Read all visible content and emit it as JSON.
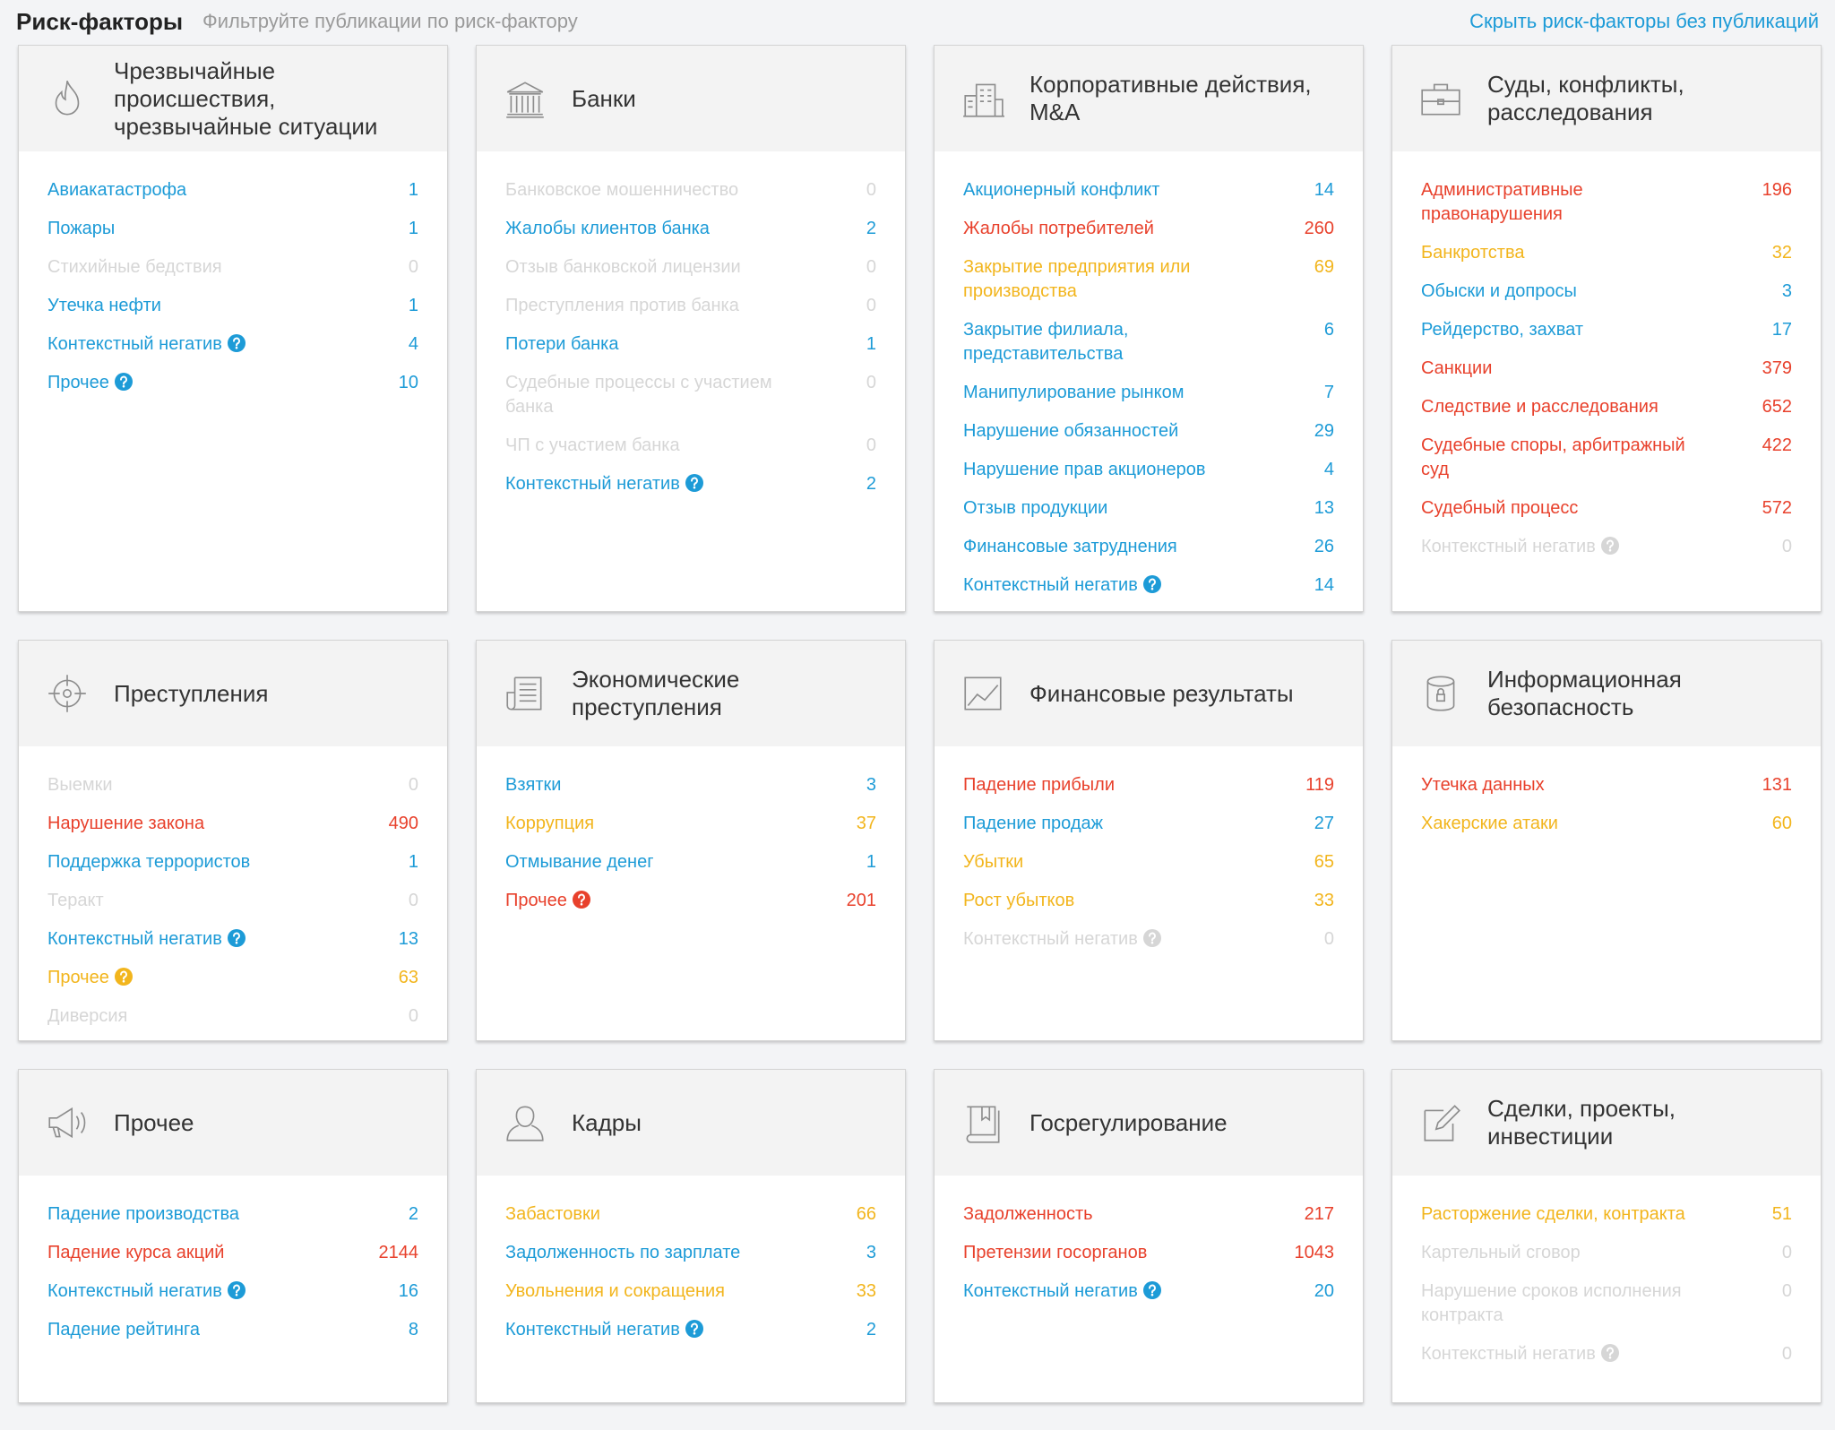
{
  "header": {
    "title": "Риск-факторы",
    "subtitle": "Фильтруйте публикации по риск-фактору",
    "link": "Скрыть риск-факторы без публикаций"
  },
  "cards": [
    {
      "title": "Чрезвычайные происшествия, чрезвычайные ситуации",
      "items": [
        {
          "label": "Авиакатастрофа",
          "count": 1,
          "color": "#1d9bd7"
        },
        {
          "label": "Пожары",
          "count": 1,
          "color": "#1d9bd7"
        },
        {
          "label": "Стихийные бедствия",
          "count": 0,
          "color": "#d6d6d6"
        },
        {
          "label": "Утечка нефти",
          "count": 1,
          "color": "#1d9bd7"
        },
        {
          "label": "Контекстный негатив",
          "count": 4,
          "color": "#1d9bd7",
          "help": true
        },
        {
          "label": "Прочее",
          "count": 10,
          "color": "#1d9bd7",
          "help": true
        }
      ]
    },
    {
      "title": "Банки",
      "items": [
        {
          "label": "Банковское мошенничество",
          "count": 0,
          "color": "#d6d6d6"
        },
        {
          "label": "Жалобы клиентов банка",
          "count": 2,
          "color": "#1d9bd7"
        },
        {
          "label": "Отзыв банковской лицензии",
          "count": 0,
          "color": "#d6d6d6"
        },
        {
          "label": "Преступления против банка",
          "count": 0,
          "color": "#d6d6d6"
        },
        {
          "label": "Потери банка",
          "count": 1,
          "color": "#1d9bd7"
        },
        {
          "label": "Судебные процессы с участием банка",
          "count": 0,
          "color": "#d6d6d6"
        },
        {
          "label": "ЧП с участием банка",
          "count": 0,
          "color": "#d6d6d6"
        },
        {
          "label": "Контекстный негатив",
          "count": 2,
          "color": "#1d9bd7",
          "help": true
        }
      ]
    },
    {
      "title": "Корпоративные действия, M&A",
      "items": [
        {
          "label": "Акционерный конфликт",
          "count": 14,
          "color": "#1d9bd7"
        },
        {
          "label": "Жалобы потребителей",
          "count": 260,
          "color": "#e8412c"
        },
        {
          "label": "Закрытие предприятия или производства",
          "count": 69,
          "color": "#f2b51d"
        },
        {
          "label": "Закрытие филиала, представительства",
          "count": 6,
          "color": "#1d9bd7"
        },
        {
          "label": "Манипулирование рынком",
          "count": 7,
          "color": "#1d9bd7"
        },
        {
          "label": "Нарушение обязанностей",
          "count": 29,
          "color": "#1d9bd7"
        },
        {
          "label": "Нарушение прав акционеров",
          "count": 4,
          "color": "#1d9bd7"
        },
        {
          "label": "Отзыв продукции",
          "count": 13,
          "color": "#1d9bd7"
        },
        {
          "label": "Финансовые затруднения",
          "count": 26,
          "color": "#1d9bd7"
        },
        {
          "label": "Контекстный негатив",
          "count": 14,
          "color": "#1d9bd7",
          "help": true
        }
      ]
    },
    {
      "title": "Суды, конфликты, расследования",
      "items": [
        {
          "label": "Административные правонарушения",
          "count": 196,
          "color": "#e8412c"
        },
        {
          "label": "Банкротства",
          "count": 32,
          "color": "#f2b51d"
        },
        {
          "label": "Обыски и допросы",
          "count": 3,
          "color": "#1d9bd7"
        },
        {
          "label": "Рейдерство, захват",
          "count": 17,
          "color": "#1d9bd7"
        },
        {
          "label": "Санкции",
          "count": 379,
          "color": "#e8412c"
        },
        {
          "label": "Следствие и расследования",
          "count": 652,
          "color": "#e8412c"
        },
        {
          "label": "Судебные споры, арбитражный суд",
          "count": 422,
          "color": "#e8412c"
        },
        {
          "label": "Судебный процесс",
          "count": 572,
          "color": "#e8412c"
        },
        {
          "label": "Контекстный негатив",
          "count": 0,
          "color": "#d6d6d6",
          "help": true
        }
      ]
    },
    {
      "title": "Преступления",
      "items": [
        {
          "label": "Выемки",
          "count": 0,
          "color": "#d6d6d6"
        },
        {
          "label": "Нарушение закона",
          "count": 490,
          "color": "#e8412c"
        },
        {
          "label": "Поддержка террористов",
          "count": 1,
          "color": "#1d9bd7"
        },
        {
          "label": "Теракт",
          "count": 0,
          "color": "#d6d6d6"
        },
        {
          "label": "Контекстный негатив",
          "count": 13,
          "color": "#1d9bd7",
          "help": true
        },
        {
          "label": "Прочее",
          "count": 63,
          "color": "#f2b51d",
          "help": true
        },
        {
          "label": "Диверсия",
          "count": 0,
          "color": "#d6d6d6"
        }
      ]
    },
    {
      "title": "Экономические преступления",
      "items": [
        {
          "label": "Взятки",
          "count": 3,
          "color": "#1d9bd7"
        },
        {
          "label": "Коррупция",
          "count": 37,
          "color": "#f2b51d"
        },
        {
          "label": "Отмывание денег",
          "count": 1,
          "color": "#1d9bd7"
        },
        {
          "label": "Прочее",
          "count": 201,
          "color": "#e8412c",
          "help": true
        }
      ]
    },
    {
      "title": "Финансовые результаты",
      "items": [
        {
          "label": "Падение прибыли",
          "count": 119,
          "color": "#e8412c"
        },
        {
          "label": "Падение продаж",
          "count": 27,
          "color": "#1d9bd7"
        },
        {
          "label": "Убытки",
          "count": 65,
          "color": "#f2b51d"
        },
        {
          "label": "Рост убытков",
          "count": 33,
          "color": "#f2b51d"
        },
        {
          "label": "Контекстный негатив",
          "count": 0,
          "color": "#d6d6d6",
          "help": true
        }
      ]
    },
    {
      "title": "Информационная безопасность",
      "items": [
        {
          "label": "Утечка данных",
          "count": 131,
          "color": "#e8412c"
        },
        {
          "label": "Хакерские атаки",
          "count": 60,
          "color": "#f2b51d"
        }
      ]
    },
    {
      "title": "Прочее",
      "items": [
        {
          "label": "Падение производства",
          "count": 2,
          "color": "#1d9bd7"
        },
        {
          "label": "Падение курса акций",
          "count": 2144,
          "color": "#e8412c"
        },
        {
          "label": "Контекстный негатив",
          "count": 16,
          "color": "#1d9bd7",
          "help": true
        },
        {
          "label": "Падение рейтинга",
          "count": 8,
          "color": "#1d9bd7"
        }
      ]
    },
    {
      "title": "Кадры",
      "items": [
        {
          "label": "Забастовки",
          "count": 66,
          "color": "#f2b51d"
        },
        {
          "label": "Задолженность по зарплате",
          "count": 3,
          "color": "#1d9bd7"
        },
        {
          "label": "Увольнения и сокращения",
          "count": 33,
          "color": "#f2b51d"
        },
        {
          "label": "Контекстный негатив",
          "count": 2,
          "color": "#1d9bd7",
          "help": true
        }
      ]
    },
    {
      "title": "Госрегулирование",
      "items": [
        {
          "label": "Задолженность",
          "count": 217,
          "color": "#e8412c"
        },
        {
          "label": "Претензии госорганов",
          "count": 1043,
          "color": "#e8412c"
        },
        {
          "label": "Контекстный негатив",
          "count": 20,
          "color": "#1d9bd7",
          "help": true
        }
      ]
    },
    {
      "title": "Сделки, проекты, инвестиции",
      "items": [
        {
          "label": "Расторжение сделки, контракта",
          "count": 51,
          "color": "#f2b51d"
        },
        {
          "label": "Картельный сговор",
          "count": 0,
          "color": "#d6d6d6"
        },
        {
          "label": "Нарушение сроков исполнения контракта",
          "count": 0,
          "color": "#d6d6d6"
        },
        {
          "label": "Контекстный негатив",
          "count": 0,
          "color": "#d6d6d6",
          "help": true
        }
      ]
    }
  ]
}
